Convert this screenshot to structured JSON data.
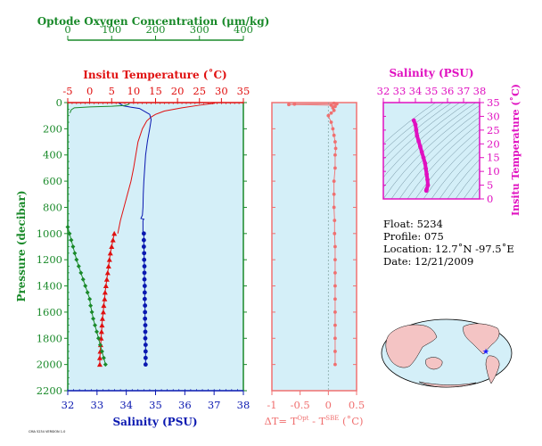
{
  "colors": {
    "oxygen": "#1a8a2a",
    "temperature": "#e01010",
    "salinity": "#0a18b0",
    "delta": "#f07070",
    "salinity_panel": "#e010c0",
    "panel_bg": "#d4eff8",
    "land": "#f4c4c4",
    "float_marker": "#1a1aff"
  },
  "main_panel": {
    "oxygen_axis_title": "Optode Oxygen Concentration (μm/kg)",
    "temp_axis_title": "Insitu Temperature (˚C)",
    "pressure_axis_title": "Pressure (decibar)",
    "salinity_axis_title": "Salinity (PSU)"
  },
  "delta_panel": {
    "axis_title": "ΔT= T^Opt - T^SBE (˚C)",
    "axis_title_parts": {
      "a": "ΔT= T",
      "b": "Opt",
      "c": " - T",
      "d": "SBE",
      "e": " (˚C)"
    }
  },
  "ts_panel": {
    "salinity_axis_title": "Salinity (PSU)",
    "temp_axis_title": "Insitu Temperature (˚C)"
  },
  "info": {
    "float": "Float:  5234",
    "profile": "Profile:  075",
    "location": "Location:  12.7˚N  -97.5˚E",
    "date": "Date:  12/21/2009"
  },
  "tiny_label": "CMA 5234 VERSION 1.0",
  "chart_data": [
    {
      "type": "line",
      "name": "profile",
      "y_axis": {
        "label": "Pressure (decibar)",
        "range": [
          2200,
          0
        ],
        "ticks": [
          0,
          200,
          400,
          600,
          800,
          1000,
          1200,
          1400,
          1600,
          1800,
          2000,
          2200
        ]
      },
      "x_axes": {
        "oxygen": {
          "label": "Optode Oxygen Concentration (μm/kg)",
          "range": [
            0,
            400
          ],
          "ticks": [
            0,
            100,
            200,
            300,
            400
          ]
        },
        "temperature": {
          "label": "Insitu Temperature (˚C)",
          "range": [
            -5,
            35
          ],
          "ticks": [
            -5,
            0,
            5,
            10,
            15,
            20,
            25,
            30,
            35
          ]
        },
        "salinity": {
          "label": "Salinity (PSU)",
          "range": [
            32,
            38
          ],
          "ticks": [
            32,
            33,
            34,
            35,
            36,
            37,
            38
          ]
        }
      },
      "series": [
        {
          "quantity": "temperature",
          "style": "line",
          "points": [
            [
              28.5,
              5
            ],
            [
              25,
              20
            ],
            [
              21,
              40
            ],
            [
              17,
              65
            ],
            [
              15,
              90
            ],
            [
              14,
              110
            ],
            [
              13,
              140
            ],
            [
              12,
              200
            ],
            [
              11,
              300
            ],
            [
              10.5,
              400
            ],
            [
              10,
              500
            ],
            [
              9.4,
              600
            ],
            [
              8.6,
              700
            ],
            [
              7.8,
              800
            ],
            [
              7,
              900
            ],
            [
              6.4,
              1000
            ]
          ]
        },
        {
          "quantity": "temperature",
          "style": "markers",
          "points": [
            [
              5.6,
              1000
            ],
            [
              5.3,
              1050
            ],
            [
              5,
              1100
            ],
            [
              4.7,
              1150
            ],
            [
              4.5,
              1200
            ],
            [
              4.3,
              1250
            ],
            [
              4.1,
              1300
            ],
            [
              3.9,
              1350
            ],
            [
              3.7,
              1400
            ],
            [
              3.5,
              1450
            ],
            [
              3.4,
              1500
            ],
            [
              3.2,
              1550
            ],
            [
              3.1,
              1600
            ],
            [
              2.9,
              1650
            ],
            [
              2.8,
              1700
            ],
            [
              2.7,
              1750
            ],
            [
              2.6,
              1800
            ],
            [
              2.5,
              1850
            ],
            [
              2.4,
              1900
            ],
            [
              2.3,
              1950
            ],
            [
              2.3,
              2000
            ]
          ]
        },
        {
          "quantity": "salinity",
          "style": "line",
          "points": [
            [
              33.75,
              5
            ],
            [
              33.9,
              25
            ],
            [
              34.15,
              35
            ],
            [
              34.45,
              45
            ],
            [
              34.8,
              90
            ],
            [
              34.85,
              130
            ],
            [
              34.8,
              200
            ],
            [
              34.72,
              300
            ],
            [
              34.66,
              400
            ],
            [
              34.63,
              500
            ],
            [
              34.6,
              600
            ],
            [
              34.58,
              700
            ],
            [
              34.57,
              800
            ],
            [
              34.55,
              860
            ],
            [
              34.5,
              885
            ],
            [
              34.6,
              890
            ],
            [
              34.57,
              900
            ],
            [
              34.57,
              1000
            ]
          ]
        },
        {
          "quantity": "salinity",
          "style": "markers",
          "points": [
            [
              34.6,
              1000
            ],
            [
              34.6,
              1050
            ],
            [
              34.6,
              1100
            ],
            [
              34.61,
              1150
            ],
            [
              34.61,
              1200
            ],
            [
              34.62,
              1250
            ],
            [
              34.62,
              1300
            ],
            [
              34.62,
              1350
            ],
            [
              34.63,
              1400
            ],
            [
              34.63,
              1450
            ],
            [
              34.63,
              1500
            ],
            [
              34.64,
              1550
            ],
            [
              34.64,
              1600
            ],
            [
              34.64,
              1650
            ],
            [
              34.65,
              1700
            ],
            [
              34.65,
              1750
            ],
            [
              34.65,
              1800
            ],
            [
              34.66,
              1850
            ],
            [
              34.66,
              1900
            ],
            [
              34.66,
              1950
            ],
            [
              34.66,
              2000
            ]
          ]
        },
        {
          "quantity": "oxygen",
          "style": "line",
          "points": [
            [
              140,
              5
            ],
            [
              138,
              15
            ],
            [
              130,
              22
            ],
            [
              100,
              28
            ],
            [
              50,
              33
            ],
            [
              15,
              40
            ],
            [
              8,
              55
            ],
            [
              5,
              80
            ]
          ]
        },
        {
          "quantity": "oxygen",
          "style": "markers",
          "points": [
            [
              0,
              950
            ],
            [
              4,
              1000
            ],
            [
              8,
              1050
            ],
            [
              12,
              1100
            ],
            [
              16,
              1150
            ],
            [
              20,
              1200
            ],
            [
              25,
              1250
            ],
            [
              30,
              1300
            ],
            [
              35,
              1350
            ],
            [
              40,
              1400
            ],
            [
              45,
              1450
            ],
            [
              50,
              1500
            ],
            [
              52,
              1550
            ],
            [
              55,
              1600
            ],
            [
              58,
              1650
            ],
            [
              62,
              1700
            ],
            [
              66,
              1750
            ],
            [
              70,
              1800
            ],
            [
              74,
              1850
            ],
            [
              78,
              1900
            ],
            [
              82,
              1950
            ],
            [
              86,
              2000
            ]
          ]
        }
      ]
    },
    {
      "type": "line",
      "name": "delta_t",
      "x_axis": {
        "label": "ΔT= T^Opt - T^SBE (˚C)",
        "range": [
          -1.0,
          0.5
        ],
        "ticks": [
          -1.0,
          -0.5,
          0.0,
          0.5
        ]
      },
      "y_axis": {
        "range": [
          2200,
          0
        ]
      },
      "points": [
        [
          0.1,
          5
        ],
        [
          0.15,
          10
        ],
        [
          -0.6,
          12
        ],
        [
          -0.7,
          15
        ],
        [
          0.05,
          20
        ],
        [
          0.12,
          30
        ],
        [
          0.08,
          40
        ],
        [
          0.1,
          60
        ],
        [
          0.05,
          80
        ],
        [
          0.0,
          100
        ],
        [
          0.05,
          150
        ],
        [
          0.08,
          200
        ],
        [
          0.1,
          250
        ],
        [
          0.12,
          300
        ],
        [
          0.13,
          350
        ],
        [
          0.12,
          400
        ],
        [
          0.12,
          500
        ],
        [
          0.1,
          600
        ],
        [
          0.1,
          700
        ],
        [
          0.1,
          800
        ],
        [
          0.11,
          900
        ],
        [
          0.11,
          1000
        ],
        [
          0.12,
          1100
        ],
        [
          0.12,
          1200
        ],
        [
          0.12,
          1300
        ],
        [
          0.12,
          1400
        ],
        [
          0.12,
          1500
        ],
        [
          0.12,
          1600
        ],
        [
          0.12,
          1700
        ],
        [
          0.12,
          1800
        ],
        [
          0.12,
          1900
        ],
        [
          0.12,
          2000
        ]
      ]
    },
    {
      "type": "scatter",
      "name": "ts_diagram",
      "x_axis": {
        "label": "Salinity (PSU)",
        "range": [
          32,
          38
        ],
        "ticks": [
          32,
          33,
          34,
          35,
          36,
          37,
          38
        ]
      },
      "y_axis": {
        "label": "Insitu Temperature (˚C)",
        "range": [
          0,
          35
        ],
        "ticks": [
          0,
          5,
          10,
          15,
          20,
          25,
          30,
          35
        ]
      },
      "points": [
        [
          33.9,
          28.5
        ],
        [
          34.0,
          27
        ],
        [
          34.05,
          25
        ],
        [
          34.1,
          23
        ],
        [
          34.2,
          21
        ],
        [
          34.3,
          19
        ],
        [
          34.4,
          17
        ],
        [
          34.5,
          15
        ],
        [
          34.6,
          13
        ],
        [
          34.65,
          11
        ],
        [
          34.7,
          9
        ],
        [
          34.75,
          7
        ],
        [
          34.78,
          5
        ],
        [
          34.7,
          3.5
        ],
        [
          34.68,
          3
        ]
      ]
    }
  ]
}
